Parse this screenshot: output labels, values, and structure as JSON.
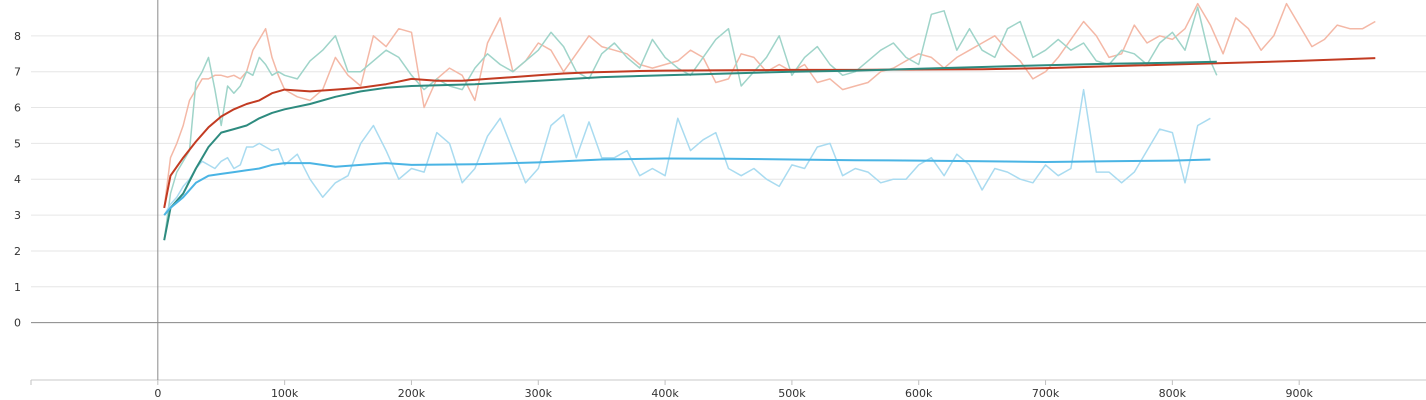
{
  "chart_data": {
    "type": "line",
    "title": "",
    "xlabel": "",
    "ylabel": "",
    "xlim": [
      -100000,
      1000000
    ],
    "ylim": [
      -1.6,
      9.0
    ],
    "grid": true,
    "x_ticks": [
      0,
      100000,
      200000,
      300000,
      400000,
      500000,
      600000,
      700000,
      800000,
      900000
    ],
    "x_tick_labels": [
      "0",
      "100k",
      "200k",
      "300k",
      "400k",
      "500k",
      "600k",
      "700k",
      "800k",
      "900k"
    ],
    "y_ticks": [
      0,
      1,
      2,
      3,
      4,
      5,
      6,
      7,
      8
    ],
    "y_tick_labels": [
      "0",
      "1",
      "2",
      "3",
      "4",
      "5",
      "6",
      "7",
      "8"
    ],
    "series": [
      {
        "color": "#f4b8a6",
        "role": "raw",
        "x": [
          5000,
          10000,
          15000,
          20000,
          25000,
          30000,
          35000,
          40000,
          45000,
          50000,
          55000,
          60000,
          65000,
          70000,
          75000,
          80000,
          85000,
          90000,
          95000,
          100000,
          110000,
          120000,
          130000,
          140000,
          150000,
          160000,
          170000,
          180000,
          190000,
          200000,
          210000,
          220000,
          230000,
          240000,
          250000,
          260000,
          270000,
          280000,
          290000,
          300000,
          310000,
          320000,
          330000,
          340000,
          350000,
          360000,
          370000,
          380000,
          390000,
          400000,
          410000,
          420000,
          430000,
          440000,
          450000,
          460000,
          470000,
          480000,
          490000,
          500000,
          510000,
          520000,
          530000,
          540000,
          550000,
          560000,
          570000,
          580000,
          590000,
          600000,
          610000,
          620000,
          630000,
          640000,
          650000,
          660000,
          670000,
          680000,
          690000,
          700000,
          710000,
          720000,
          730000,
          740000,
          750000,
          760000,
          770000,
          780000,
          790000,
          800000,
          810000,
          820000,
          830000,
          840000,
          850000,
          860000,
          870000,
          880000,
          890000,
          900000,
          910000,
          920000,
          930000,
          940000,
          950000,
          960000
        ],
        "y": [
          3.2,
          4.6,
          5.0,
          5.5,
          6.2,
          6.5,
          6.8,
          6.8,
          6.9,
          6.9,
          6.85,
          6.9,
          6.8,
          7.0,
          7.6,
          7.9,
          8.2,
          7.4,
          6.9,
          6.5,
          6.3,
          6.2,
          6.5,
          7.4,
          6.9,
          6.6,
          8.0,
          7.7,
          8.2,
          8.1,
          6.0,
          6.8,
          7.1,
          6.9,
          6.2,
          7.8,
          8.5,
          7.0,
          7.3,
          7.8,
          7.6,
          7.0,
          7.5,
          8.0,
          7.7,
          7.6,
          7.5,
          7.2,
          7.1,
          7.2,
          7.3,
          7.6,
          7.4,
          6.7,
          6.8,
          7.5,
          7.4,
          7.0,
          7.2,
          7.0,
          7.2,
          6.7,
          6.8,
          6.5,
          6.6,
          6.7,
          7.0,
          7.1,
          7.3,
          7.5,
          7.4,
          7.1,
          7.4,
          7.6,
          7.8,
          8.0,
          7.6,
          7.3,
          6.8,
          7.0,
          7.4,
          7.9,
          8.4,
          8.0,
          7.4,
          7.5,
          8.3,
          7.8,
          8.0,
          7.9,
          8.2,
          8.9,
          8.3,
          7.5,
          8.5,
          8.2,
          7.6,
          8.0,
          8.9,
          8.3,
          7.7,
          7.9,
          8.3,
          8.2,
          8.2,
          8.4
        ]
      },
      {
        "color": "#c23b22",
        "role": "smoothed",
        "x": [
          5000,
          10000,
          20000,
          30000,
          40000,
          50000,
          60000,
          70000,
          80000,
          90000,
          100000,
          120000,
          140000,
          160000,
          180000,
          200000,
          220000,
          240000,
          260000,
          280000,
          300000,
          320000,
          340000,
          360000,
          380000,
          400000,
          450000,
          500000,
          550000,
          600000,
          650000,
          700000,
          750000,
          800000,
          850000,
          900000,
          960000
        ],
        "y": [
          3.2,
          4.1,
          4.6,
          5.05,
          5.45,
          5.75,
          5.95,
          6.1,
          6.2,
          6.4,
          6.5,
          6.45,
          6.5,
          6.55,
          6.65,
          6.8,
          6.75,
          6.75,
          6.8,
          6.85,
          6.9,
          6.95,
          6.98,
          7.0,
          7.02,
          7.03,
          7.04,
          7.05,
          7.05,
          7.06,
          7.07,
          7.1,
          7.15,
          7.2,
          7.25,
          7.3,
          7.38
        ]
      },
      {
        "color": "#9fd4c9",
        "role": "raw",
        "x": [
          5000,
          10000,
          15000,
          20000,
          25000,
          30000,
          35000,
          40000,
          45000,
          50000,
          55000,
          60000,
          65000,
          70000,
          75000,
          80000,
          85000,
          90000,
          95000,
          100000,
          110000,
          120000,
          130000,
          140000,
          150000,
          160000,
          170000,
          180000,
          190000,
          200000,
          210000,
          220000,
          230000,
          240000,
          250000,
          260000,
          270000,
          280000,
          290000,
          300000,
          310000,
          320000,
          330000,
          340000,
          350000,
          360000,
          370000,
          380000,
          390000,
          400000,
          410000,
          420000,
          430000,
          440000,
          450000,
          460000,
          470000,
          480000,
          490000,
          500000,
          510000,
          520000,
          530000,
          540000,
          550000,
          560000,
          570000,
          580000,
          590000,
          600000,
          610000,
          620000,
          630000,
          640000,
          650000,
          660000,
          670000,
          680000,
          690000,
          700000,
          710000,
          720000,
          730000,
          740000,
          750000,
          760000,
          770000,
          780000,
          790000,
          800000,
          810000,
          820000,
          830000,
          835000
        ],
        "y": [
          2.3,
          3.6,
          4.2,
          4.5,
          4.8,
          6.7,
          7.0,
          7.4,
          6.5,
          5.5,
          6.6,
          6.4,
          6.6,
          7.0,
          6.9,
          7.4,
          7.2,
          6.9,
          7.0,
          6.9,
          6.8,
          7.3,
          7.6,
          8.0,
          7.0,
          7.0,
          7.3,
          7.6,
          7.4,
          6.9,
          6.5,
          6.8,
          6.6,
          6.5,
          7.1,
          7.5,
          7.2,
          7.0,
          7.3,
          7.6,
          8.1,
          7.7,
          7.0,
          6.8,
          7.5,
          7.8,
          7.4,
          7.1,
          7.9,
          7.4,
          7.1,
          6.9,
          7.4,
          7.9,
          8.2,
          6.6,
          7.0,
          7.4,
          8.0,
          6.9,
          7.4,
          7.7,
          7.2,
          6.9,
          7.0,
          7.3,
          7.6,
          7.8,
          7.4,
          7.2,
          8.6,
          8.7,
          7.6,
          8.2,
          7.6,
          7.4,
          8.2,
          8.4,
          7.4,
          7.6,
          7.9,
          7.6,
          7.8,
          7.3,
          7.2,
          7.6,
          7.5,
          7.2,
          7.8,
          8.1,
          7.6,
          8.8,
          7.3,
          6.9
        ]
      },
      {
        "color": "#2e8b7f",
        "role": "smoothed",
        "x": [
          5000,
          10000,
          20000,
          30000,
          40000,
          50000,
          60000,
          70000,
          80000,
          90000,
          100000,
          120000,
          140000,
          160000,
          180000,
          200000,
          250000,
          300000,
          350000,
          400000,
          450000,
          500000,
          550000,
          600000,
          650000,
          700000,
          750000,
          800000,
          835000
        ],
        "y": [
          2.3,
          3.2,
          3.6,
          4.3,
          4.9,
          5.3,
          5.4,
          5.5,
          5.7,
          5.85,
          5.95,
          6.1,
          6.3,
          6.45,
          6.55,
          6.6,
          6.65,
          6.75,
          6.85,
          6.9,
          6.95,
          7.0,
          7.03,
          7.08,
          7.13,
          7.18,
          7.22,
          7.25,
          7.28
        ]
      },
      {
        "color": "#a9dbf0",
        "role": "raw",
        "x": [
          5000,
          10000,
          15000,
          20000,
          25000,
          30000,
          35000,
          40000,
          45000,
          50000,
          55000,
          60000,
          65000,
          70000,
          75000,
          80000,
          85000,
          90000,
          95000,
          100000,
          110000,
          120000,
          130000,
          140000,
          150000,
          160000,
          170000,
          180000,
          190000,
          200000,
          210000,
          220000,
          230000,
          240000,
          250000,
          260000,
          270000,
          280000,
          290000,
          300000,
          310000,
          320000,
          330000,
          340000,
          350000,
          360000,
          370000,
          380000,
          390000,
          400000,
          410000,
          420000,
          430000,
          440000,
          450000,
          460000,
          470000,
          480000,
          490000,
          500000,
          510000,
          520000,
          530000,
          540000,
          550000,
          560000,
          570000,
          580000,
          590000,
          600000,
          610000,
          620000,
          630000,
          640000,
          650000,
          660000,
          670000,
          680000,
          690000,
          700000,
          710000,
          720000,
          730000,
          740000,
          750000,
          760000,
          770000,
          780000,
          790000,
          800000,
          810000,
          820000,
          830000
        ],
        "y": [
          3.0,
          3.3,
          3.5,
          3.8,
          4.0,
          4.3,
          4.5,
          4.4,
          4.3,
          4.5,
          4.6,
          4.3,
          4.4,
          4.9,
          4.9,
          5.0,
          4.9,
          4.8,
          4.85,
          4.4,
          4.7,
          4.0,
          3.5,
          3.9,
          4.1,
          5.0,
          5.5,
          4.8,
          4.0,
          4.3,
          4.2,
          5.3,
          5.0,
          3.9,
          4.3,
          5.2,
          5.7,
          4.8,
          3.9,
          4.3,
          5.5,
          5.8,
          4.6,
          5.6,
          4.6,
          4.6,
          4.8,
          4.1,
          4.3,
          4.1,
          5.7,
          4.8,
          5.1,
          5.3,
          4.3,
          4.1,
          4.3,
          4.0,
          3.8,
          4.4,
          4.3,
          4.9,
          5.0,
          4.1,
          4.3,
          4.2,
          3.9,
          4.0,
          4.0,
          4.4,
          4.6,
          4.1,
          4.7,
          4.4,
          3.7,
          4.3,
          4.2,
          4.0,
          3.9,
          4.4,
          4.1,
          4.3,
          6.5,
          4.2,
          4.2,
          3.9,
          4.2,
          4.8,
          5.4,
          5.3,
          3.9,
          5.5,
          5.7
        ]
      },
      {
        "color": "#4ab4e4",
        "role": "smoothed",
        "x": [
          5000,
          10000,
          20000,
          30000,
          40000,
          50000,
          60000,
          70000,
          80000,
          90000,
          100000,
          120000,
          140000,
          160000,
          180000,
          200000,
          250000,
          300000,
          350000,
          400000,
          450000,
          500000,
          550000,
          600000,
          650000,
          700000,
          750000,
          800000,
          830000
        ],
        "y": [
          3.0,
          3.2,
          3.5,
          3.9,
          4.1,
          4.15,
          4.2,
          4.25,
          4.3,
          4.4,
          4.45,
          4.45,
          4.35,
          4.4,
          4.45,
          4.4,
          4.42,
          4.47,
          4.55,
          4.58,
          4.57,
          4.55,
          4.53,
          4.52,
          4.5,
          4.48,
          4.5,
          4.52,
          4.55
        ]
      }
    ]
  }
}
